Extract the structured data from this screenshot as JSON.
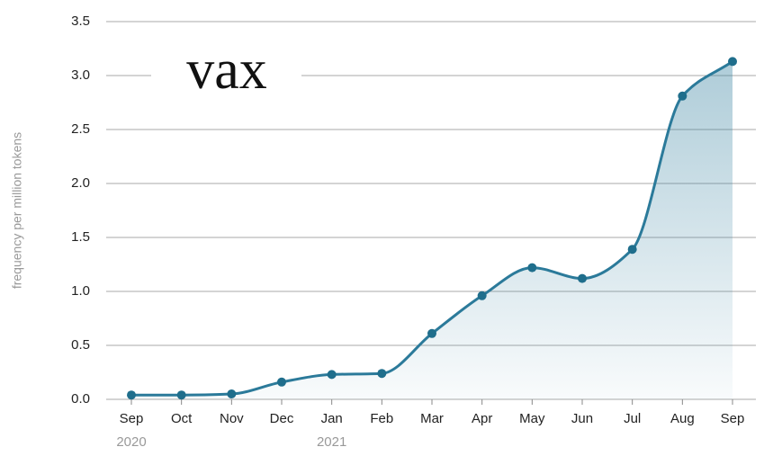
{
  "chart_data": {
    "type": "line",
    "title": "vax",
    "y_label": "frequency per million tokens",
    "categories": [
      "Sep",
      "Oct",
      "Nov",
      "Dec",
      "Jan",
      "Feb",
      "Mar",
      "Apr",
      "May",
      "Jun",
      "Jul",
      "Aug",
      "Sep"
    ],
    "year_labels": [
      "2020",
      null,
      null,
      null,
      "2021",
      null,
      null,
      null,
      null,
      null,
      null,
      null,
      null
    ],
    "values": [
      0.04,
      0.04,
      0.05,
      0.16,
      0.23,
      0.24,
      0.61,
      0.96,
      1.22,
      1.12,
      1.39,
      2.81,
      3.13
    ],
    "color": "#2b7a9a",
    "ylim": [
      0,
      3.5
    ],
    "yticks": [
      {
        "value": 0,
        "label": "0.0"
      },
      0.5,
      {
        "value": 1,
        "label": "1.0"
      },
      1.5,
      {
        "value": 2,
        "label": "2.0"
      },
      2.5,
      {
        "value": 3,
        "label": "3.0"
      },
      3.5
    ],
    "grid": true
  }
}
